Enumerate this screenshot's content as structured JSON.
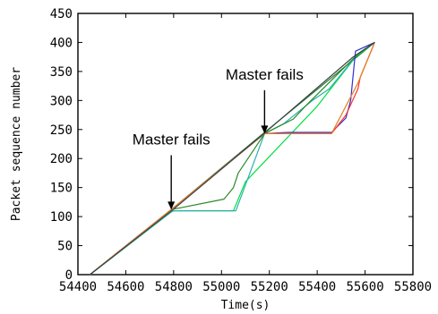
{
  "chart_data": {
    "type": "line",
    "xlabel": "Time(s)",
    "ylabel": "Packet sequence number",
    "xlim": [
      54400,
      55800
    ],
    "ylim": [
      0,
      450
    ],
    "xticks": [
      "54400",
      "54600",
      "54800",
      "55000",
      "55200",
      "55400",
      "55600",
      "55800"
    ],
    "yticks": [
      "0",
      "50",
      "100",
      "150",
      "200",
      "250",
      "300",
      "350",
      "400",
      "450"
    ],
    "grid": false,
    "legend": "none",
    "annotations": [
      {
        "text": "Master fails",
        "arrow_x": 54790,
        "arrow_y": 112,
        "text_y": 215
      },
      {
        "text": "Master fails",
        "arrow_x": 55180,
        "arrow_y": 243,
        "text_y": 327
      }
    ],
    "series": [
      {
        "color": "#1a7f3a",
        "x": [
          54450,
          54790,
          55180,
          55640
        ],
        "y": [
          0,
          112,
          245,
          400
        ]
      },
      {
        "color": "#00e040",
        "x": [
          54450,
          54790,
          54800,
          55050,
          55100,
          55400,
          55560,
          55640
        ],
        "y": [
          0,
          108,
          110,
          110,
          160,
          290,
          375,
          400
        ]
      },
      {
        "color": "#2bb0b0",
        "x": [
          54450,
          54790,
          54800,
          55060,
          55180,
          55260,
          55380,
          55450,
          55570,
          55640
        ],
        "y": [
          0,
          108,
          110,
          110,
          243,
          260,
          300,
          320,
          380,
          400
        ]
      },
      {
        "color": "#2a8a2a",
        "x": [
          54450,
          54790,
          55010,
          55030,
          55050,
          55070,
          55180,
          55300,
          55350,
          55570,
          55640
        ],
        "y": [
          0,
          112,
          130,
          140,
          150,
          175,
          243,
          268,
          290,
          380,
          400
        ]
      },
      {
        "color": "#3030d0",
        "x": [
          54450,
          54790,
          55180,
          55280,
          55460,
          55520,
          55540,
          55560,
          55640
        ],
        "y": [
          0,
          112,
          243,
          245,
          245,
          270,
          300,
          385,
          400
        ]
      },
      {
        "color": "#ff3030",
        "x": [
          54450,
          54790,
          55180,
          55460,
          55520,
          55570,
          55580,
          55640
        ],
        "y": [
          0,
          112,
          243,
          243,
          275,
          320,
          340,
          400
        ]
      },
      {
        "color": "#e08020",
        "x": [
          54450,
          54790,
          55180,
          55460,
          55570,
          55640
        ],
        "y": [
          0,
          112,
          243,
          243,
          330,
          400
        ]
      },
      {
        "color": "#404040",
        "x": [
          54450,
          54800,
          55180,
          55550,
          55640
        ],
        "y": [
          0,
          113,
          244,
          375,
          400
        ]
      }
    ]
  }
}
